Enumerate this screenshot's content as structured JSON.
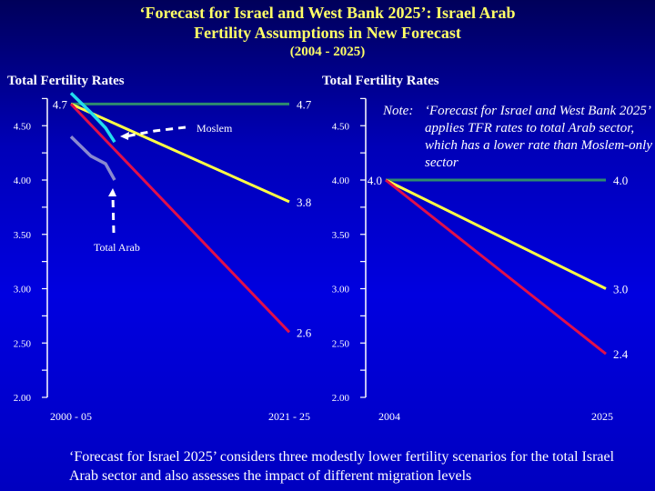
{
  "title": {
    "line1": "‘Forecast for Israel and West Bank 2025’:  Israel Arab",
    "line2": "Fertility Assumptions in New Forecast",
    "line3": "(2004 - 2025)"
  },
  "note": {
    "label": "Note:",
    "text": "‘Forecast for Israel and West Bank 2025’ applies TFR rates to total Arab sector, which has a lower rate than Moslem-only sector"
  },
  "footer": "‘Forecast for Israel 2025’ considers three modestly lower fertility scenarios for the total Israel Arab sector and also assesses the impact of different migration levels",
  "colors": {
    "green": "#2e8b6e",
    "yellow": "#ffff44",
    "red": "#e0104a",
    "cyan": "#22ddee",
    "grey": "#8a8ad0"
  },
  "chart_data": [
    {
      "type": "line",
      "ylabel": "Total Fertility Rates",
      "ylim": [
        2.0,
        4.75
      ],
      "yticks": [
        "4.50",
        "4.00",
        "3.50",
        "3.00",
        "2.50",
        "2.00"
      ],
      "x": [
        "2000 - 05",
        "2021 - 25"
      ],
      "series": [
        {
          "color": "green",
          "values": [
            4.7,
            4.7
          ],
          "labels": [
            "4.7",
            "4.7"
          ]
        },
        {
          "color": "yellow",
          "values": [
            4.7,
            3.8
          ],
          "labels": [
            "",
            "3.8"
          ]
        },
        {
          "color": "red",
          "values": [
            4.7,
            2.6
          ],
          "labels": [
            "",
            "2.6"
          ]
        }
      ],
      "historical": [
        {
          "name": "Moslem",
          "color": "cyan",
          "values": [
            4.8,
            4.62,
            4.48,
            4.35
          ]
        },
        {
          "name": "Total Arab",
          "color": "grey",
          "values": [
            4.4,
            4.22,
            4.15,
            4.0
          ]
        }
      ]
    },
    {
      "type": "line",
      "ylabel": "Total Fertility Rates",
      "ylim": [
        2.0,
        4.75
      ],
      "yticks": [
        "4.50",
        "4.00",
        "3.50",
        "3.00",
        "2.50",
        "2.00"
      ],
      "x": [
        "2004",
        "2025"
      ],
      "series": [
        {
          "color": "green",
          "values": [
            4.0,
            4.0
          ],
          "labels": [
            "4.0",
            "4.0"
          ]
        },
        {
          "color": "yellow",
          "values": [
            4.0,
            3.0
          ],
          "labels": [
            "",
            "3.0"
          ]
        },
        {
          "color": "red",
          "values": [
            4.0,
            2.4
          ],
          "labels": [
            "",
            "2.4"
          ]
        }
      ]
    }
  ]
}
